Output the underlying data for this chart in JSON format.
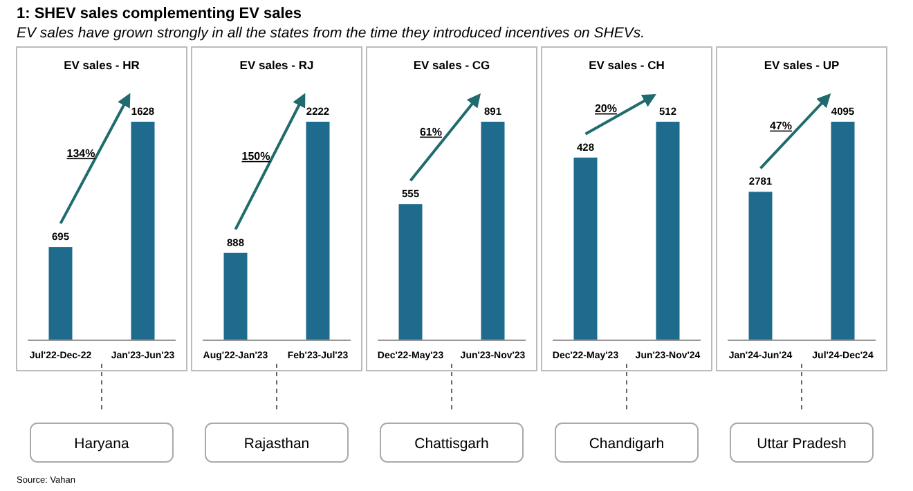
{
  "chart_data": [
    {
      "type": "bar",
      "title": "EV sales - HR",
      "categories": [
        "Jul'22-Dec-22",
        "Jan'23-Jun'23"
      ],
      "values": [
        695,
        1628
      ],
      "color": "#1f6b8e",
      "data_labels": true,
      "annotations": [
        "134%",
        "Haryana",
        "1: SHEV sales complementing EV sales",
        "EV sales have grown strongly in all the states from the time they introduced incentives on SHEVs."
      ]
    },
    {
      "type": "bar",
      "title": "EV sales - RJ",
      "categories": [
        "Aug'22-Jan'23",
        "Feb'23-Jul'23"
      ],
      "values": [
        888,
        2222
      ],
      "color": "#1f6b8e",
      "data_labels": true,
      "annotations": [
        "150%",
        "Rajasthan"
      ]
    },
    {
      "type": "bar",
      "title": "EV sales - CG",
      "categories": [
        "Dec'22-May'23",
        "Jun'23-Nov'23"
      ],
      "values": [
        555,
        891
      ],
      "color": "#1f6b8e",
      "data_labels": true,
      "annotations": [
        "61%",
        "Chattisgarh"
      ]
    },
    {
      "type": "bar",
      "title": "EV sales - CH",
      "categories": [
        "Dec'22-May'23",
        "Jun'23-Nov'24"
      ],
      "values": [
        428,
        512
      ],
      "color": "#1f6b8e",
      "data_labels": true,
      "annotations": [
        "20%",
        "Chandigarh"
      ]
    },
    {
      "type": "bar",
      "title": "EV sales - UP",
      "categories": [
        "Jan'24-Jun'24",
        "Jul'24-Dec'24"
      ],
      "values": [
        2781,
        4095
      ],
      "color": "#1f6b8e",
      "data_labels": true,
      "annotations": [
        "47%",
        "Uttar Pradesh",
        "Source: Vahan"
      ]
    }
  ]
}
